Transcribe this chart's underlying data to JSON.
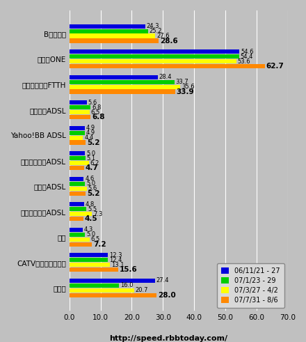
{
  "categories": [
    "Bフレッツ",
    "ひかりONE",
    "他キャリアのFTTH",
    "フレッツADSL",
    "Yahoo!BB ADSL",
    "イーアクセスADSL",
    "アッカADSL",
    "他キャリアのADSL",
    "無線",
    "CATVインターネット",
    "専用線"
  ],
  "series": {
    "06/11/21 - 27": [
      24.3,
      54.6,
      28.4,
      5.6,
      4.9,
      5.0,
      4.6,
      4.8,
      4.3,
      12.3,
      27.4
    ],
    "07/1/23 - 29": [
      25.2,
      54.4,
      33.7,
      6.8,
      4.9,
      5.1,
      5.0,
      5.5,
      5.0,
      12.4,
      16.0
    ],
    "07/3/27 - 4/2": [
      27.6,
      53.6,
      35.6,
      6.5,
      4.4,
      6.2,
      5.6,
      7.3,
      6.5,
      13.1,
      20.7
    ],
    "07/7/31 - 8/6": [
      28.6,
      62.7,
      33.9,
      6.8,
      5.2,
      4.7,
      5.2,
      4.5,
      7.2,
      15.6,
      28.0
    ]
  },
  "colors": [
    "#0000dd",
    "#00cc00",
    "#ffff00",
    "#ff8800"
  ],
  "legend_labels": [
    "06/11/21 - 27",
    "07/1/23 - 29",
    "07/3/27 - 4/2",
    "07/7/31 - 8/6"
  ],
  "xlim": [
    0,
    70
  ],
  "xticks": [
    0.0,
    10.0,
    20.0,
    30.0,
    40.0,
    50.0,
    60.0,
    70.0
  ],
  "background_color": "#c0c0c0",
  "bar_height": 0.19,
  "url": "http://speed.rbbtoday.com/"
}
